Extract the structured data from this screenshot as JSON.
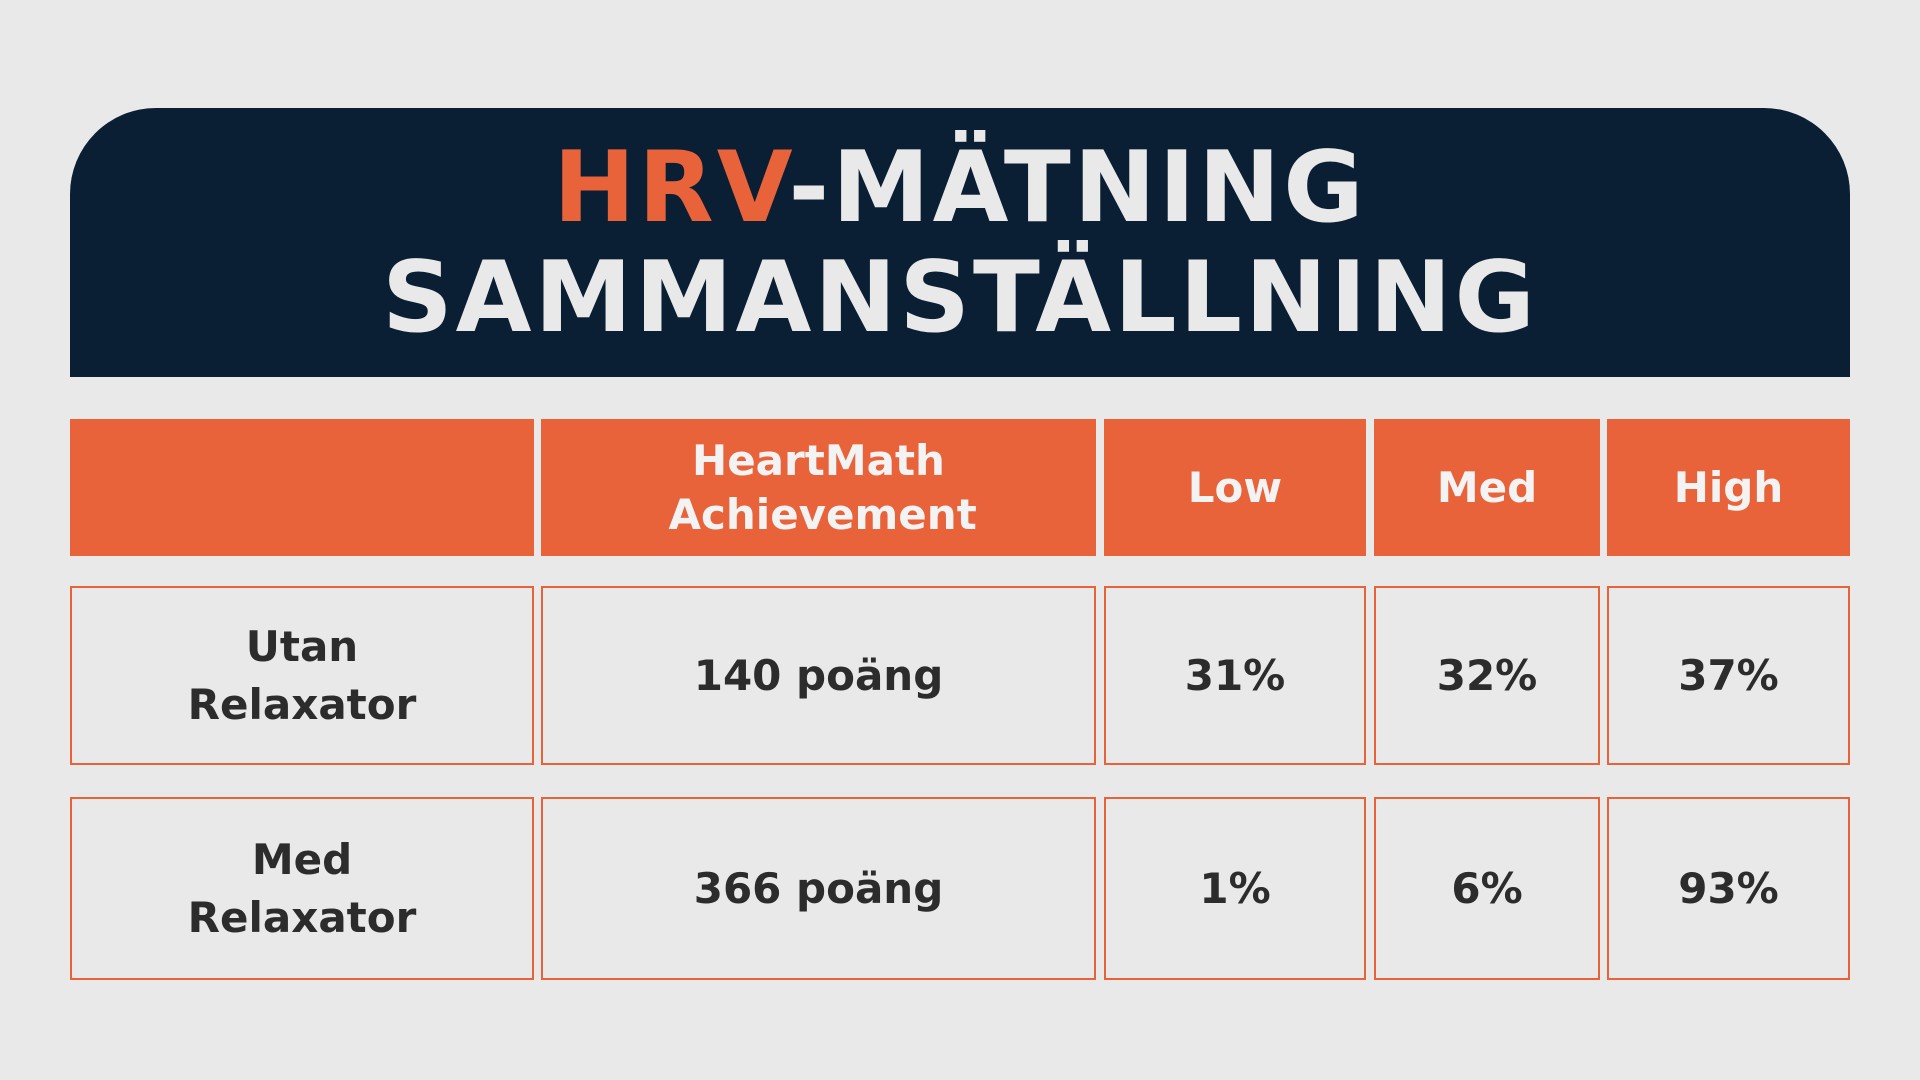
{
  "title": {
    "accent": "HRV",
    "line1_rest": "-MÄTNING",
    "line2": "SAMMANSTÄLLNING"
  },
  "table": {
    "headers": [
      "",
      "HeartMath Achievement",
      "Low",
      "Med",
      "High"
    ],
    "rows": [
      {
        "label": "Utan Relaxator",
        "achievement": "140 poäng",
        "low": "31%",
        "med": "32%",
        "high": "37%"
      },
      {
        "label": "Med Relaxator",
        "achievement": "366 poäng",
        "low": "1%",
        "med": "6%",
        "high": "93%"
      }
    ]
  },
  "colors": {
    "accent": "#e8623a",
    "navy": "#0b1f34",
    "background": "#e9e9e9",
    "text": "#2c2c2c"
  }
}
